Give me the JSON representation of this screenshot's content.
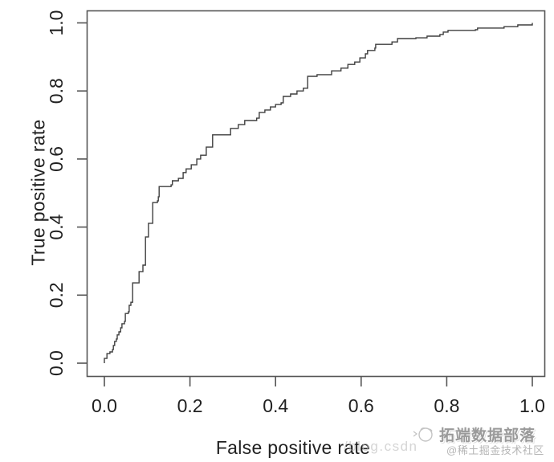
{
  "chart_data": {
    "type": "line",
    "title": "",
    "xlabel": "False positive rate",
    "ylabel": "True positive rate",
    "xlim": [
      0,
      1
    ],
    "ylim": [
      0,
      1
    ],
    "grid": false,
    "legend": "none",
    "x_ticks": {
      "values": [
        0.0,
        0.2,
        0.4,
        0.6,
        0.8,
        1.0
      ],
      "labels": [
        "0.0",
        "0.2",
        "0.4",
        "0.6",
        "0.8",
        "1.0"
      ]
    },
    "y_ticks": {
      "values": [
        0.0,
        0.2,
        0.4,
        0.6,
        0.8,
        1.0
      ],
      "labels": [
        "0.0",
        "0.2",
        "0.4",
        "0.6",
        "0.8",
        "1.0"
      ]
    },
    "series": [
      {
        "id": "roc",
        "style": "step",
        "points": [
          [
            0.0,
            0.0
          ],
          [
            0.0,
            0.014
          ],
          [
            0.006,
            0.028
          ],
          [
            0.013,
            0.033
          ],
          [
            0.019,
            0.04
          ],
          [
            0.021,
            0.052
          ],
          [
            0.024,
            0.064
          ],
          [
            0.028,
            0.071
          ],
          [
            0.03,
            0.083
          ],
          [
            0.034,
            0.092
          ],
          [
            0.038,
            0.104
          ],
          [
            0.041,
            0.116
          ],
          [
            0.047,
            0.123
          ],
          [
            0.049,
            0.146
          ],
          [
            0.056,
            0.151
          ],
          [
            0.058,
            0.17
          ],
          [
            0.062,
            0.179
          ],
          [
            0.066,
            0.182
          ],
          [
            0.066,
            0.236
          ],
          [
            0.081,
            0.241
          ],
          [
            0.081,
            0.269
          ],
          [
            0.09,
            0.274
          ],
          [
            0.09,
            0.288
          ],
          [
            0.096,
            0.288
          ],
          [
            0.096,
            0.371
          ],
          [
            0.103,
            0.371
          ],
          [
            0.103,
            0.411
          ],
          [
            0.113,
            0.411
          ],
          [
            0.113,
            0.472
          ],
          [
            0.124,
            0.477
          ],
          [
            0.126,
            0.489
          ],
          [
            0.128,
            0.519
          ],
          [
            0.156,
            0.524
          ],
          [
            0.159,
            0.536
          ],
          [
            0.173,
            0.543
          ],
          [
            0.184,
            0.56
          ],
          [
            0.191,
            0.571
          ],
          [
            0.203,
            0.583
          ],
          [
            0.216,
            0.6
          ],
          [
            0.225,
            0.611
          ],
          [
            0.238,
            0.614
          ],
          [
            0.238,
            0.635
          ],
          [
            0.253,
            0.638
          ],
          [
            0.253,
            0.671
          ],
          [
            0.291,
            0.671
          ],
          [
            0.295,
            0.69
          ],
          [
            0.313,
            0.701
          ],
          [
            0.328,
            0.713
          ],
          [
            0.356,
            0.72
          ],
          [
            0.362,
            0.737
          ],
          [
            0.375,
            0.744
          ],
          [
            0.388,
            0.753
          ],
          [
            0.4,
            0.76
          ],
          [
            0.413,
            0.765
          ],
          [
            0.418,
            0.784
          ],
          [
            0.435,
            0.791
          ],
          [
            0.45,
            0.8
          ],
          [
            0.465,
            0.808
          ],
          [
            0.475,
            0.843
          ],
          [
            0.497,
            0.848
          ],
          [
            0.531,
            0.859
          ],
          [
            0.553,
            0.867
          ],
          [
            0.569,
            0.878
          ],
          [
            0.585,
            0.885
          ],
          [
            0.597,
            0.897
          ],
          [
            0.61,
            0.909
          ],
          [
            0.615,
            0.919
          ],
          [
            0.632,
            0.926
          ],
          [
            0.634,
            0.937
          ],
          [
            0.672,
            0.944
          ],
          [
            0.685,
            0.954
          ],
          [
            0.728,
            0.956
          ],
          [
            0.754,
            0.961
          ],
          [
            0.784,
            0.966
          ],
          [
            0.792,
            0.973
          ],
          [
            0.803,
            0.978
          ],
          [
            0.867,
            0.98
          ],
          [
            0.872,
            0.985
          ],
          [
            0.934,
            0.989
          ],
          [
            0.966,
            0.994
          ],
          [
            1.0,
            1.0
          ]
        ]
      }
    ]
  },
  "watermarks": {
    "csdn_fragment": "/blog.csdn",
    "community_name": "拓端数据部落",
    "community_handle": "@稀土掘金技术社区",
    "logo_icon": "sketch-mascot-icon"
  },
  "colors": {
    "background": "#ffffff",
    "curve": "#3f3f3f",
    "axis": "#555555",
    "text": "#212121",
    "watermark_dark": "#9a9a9a",
    "watermark_light": "#b5b5b5",
    "watermark_faint": "#c9c9c9"
  }
}
